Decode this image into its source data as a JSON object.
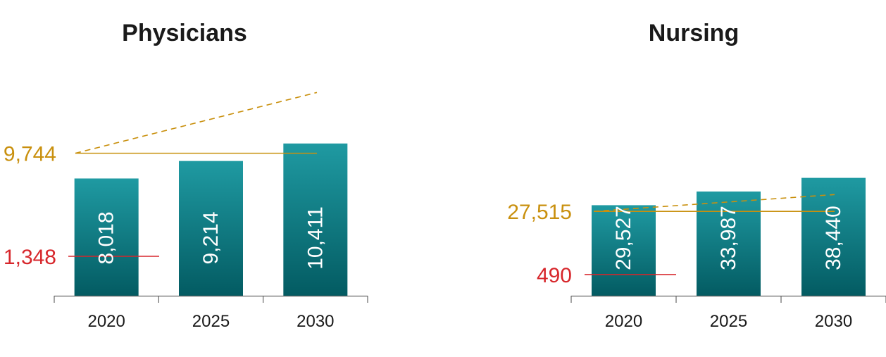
{
  "chart_data": [
    {
      "type": "bar",
      "title": "Physicians",
      "categories": [
        "2020",
        "2025",
        "2030"
      ],
      "values": [
        8018,
        9214,
        10411
      ],
      "value_labels": [
        "8,018",
        "9,214",
        "10,411"
      ],
      "ylim": [
        0,
        13000
      ],
      "reference_lines": [
        {
          "value": 9744,
          "label": "9,744",
          "color": "#c9900e",
          "style": "solid"
        },
        {
          "value": 1348,
          "label": "1,348",
          "color": "#d7262b",
          "style": "solid"
        }
      ],
      "trend_line": {
        "start_value": 9744,
        "end_value": 13900,
        "color": "#c9900e",
        "style": "dashed"
      }
    },
    {
      "type": "bar",
      "title": "Nursing",
      "categories": [
        "2020",
        "2025",
        "2030"
      ],
      "values": [
        29527,
        33987,
        38440
      ],
      "value_labels": [
        "29,527",
        "33,987",
        "38,440"
      ],
      "ylim": [
        0,
        62000
      ],
      "reference_lines": [
        {
          "value": 27515,
          "label": "27,515",
          "color": "#c9900e",
          "style": "solid"
        },
        {
          "value": 490,
          "label": "490",
          "color": "#d7262b",
          "style": "solid"
        }
      ],
      "trend_line": {
        "start_value": 27515,
        "end_value": 33000,
        "color": "#c9900e",
        "style": "dashed"
      }
    }
  ],
  "colors": {
    "bar_top": "#1f9aa2",
    "bar_bottom": "#035b62",
    "axis": "#666666"
  }
}
